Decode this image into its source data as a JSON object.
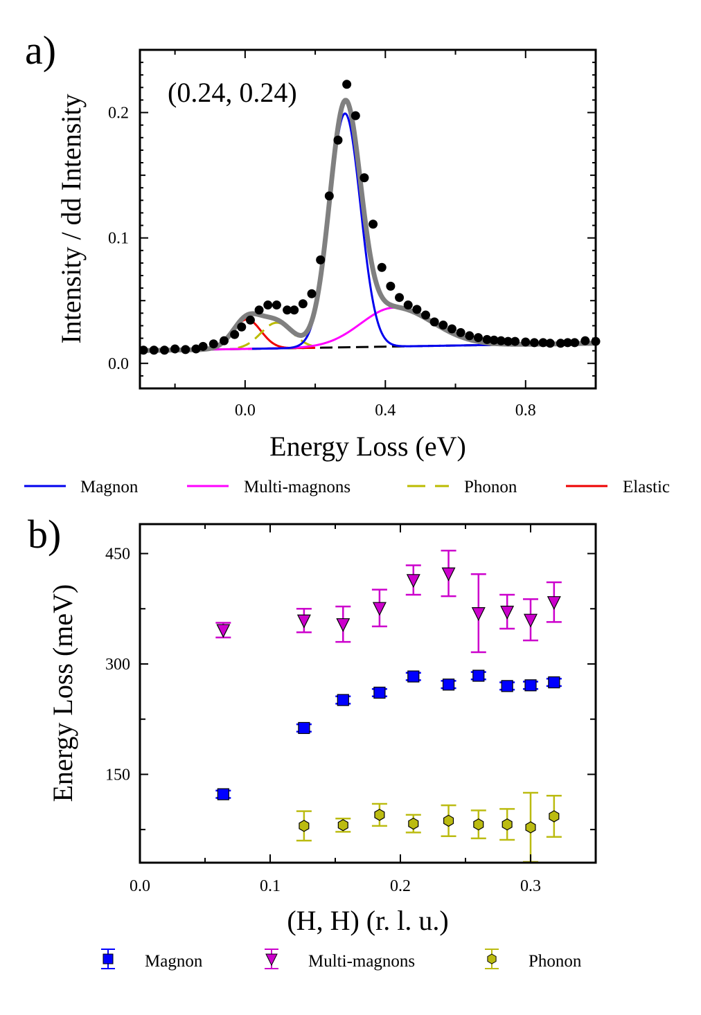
{
  "chart_data": [
    {
      "panel": "a)",
      "type": "line",
      "annotation": "(0.24, 0.24)",
      "xlabel": "Energy Loss (eV)",
      "ylabel": "Intensity / dd Intensity",
      "xlim": [
        -0.3,
        1.0
      ],
      "ylim": [
        -0.02,
        0.25
      ],
      "xticks": [
        {
          "value": 0.0,
          "label": "0.0"
        },
        {
          "value": 0.4,
          "label": "0.4"
        },
        {
          "value": 0.8,
          "label": "0.8"
        }
      ],
      "yticks": [
        {
          "value": 0.0,
          "label": "0.0"
        },
        {
          "value": 0.1,
          "label": "0.1"
        },
        {
          "value": 0.2,
          "label": "0.2"
        }
      ],
      "grid": false,
      "legend_position": "below",
      "legend": [
        {
          "name": "Magnon",
          "color": "#0000ee",
          "style": "solid"
        },
        {
          "name": "Multi-magnons",
          "color": "#ff00ff",
          "style": "solid"
        },
        {
          "name": "Phonon",
          "color": "#bbbb00",
          "style": "dashed"
        },
        {
          "name": "Elastic",
          "color": "#ee0000",
          "style": "solid"
        }
      ],
      "model": {
        "background": {
          "intercept": 0.0115,
          "slope": 0.0045,
          "color": "#000000"
        },
        "magnon": {
          "center": 0.285,
          "amplitude": 0.1865,
          "sigma": 0.044,
          "gamma": 0.01,
          "color": "#0000ee"
        },
        "multimagnon": {
          "center": 0.425,
          "amplitude": 0.031,
          "sigma_left": 0.095,
          "sigma_right": 0.11,
          "color": "#ff00ff"
        },
        "phonon": {
          "center": 0.09,
          "amplitude": 0.0205,
          "sigma": 0.045,
          "color": "#bbbb00"
        },
        "elastic": {
          "center": 0.005,
          "amplitude": 0.0235,
          "sigma": 0.04,
          "color": "#ee0000"
        },
        "total_color": "#808080"
      },
      "data_points": [
        {
          "x": -0.29,
          "y": 0.0105
        },
        {
          "x": -0.26,
          "y": 0.0105
        },
        {
          "x": -0.23,
          "y": 0.0105
        },
        {
          "x": -0.2,
          "y": 0.0115
        },
        {
          "x": -0.17,
          "y": 0.011
        },
        {
          "x": -0.14,
          "y": 0.0115
        },
        {
          "x": -0.12,
          "y": 0.0135
        },
        {
          "x": -0.09,
          "y": 0.0155
        },
        {
          "x": -0.06,
          "y": 0.018
        },
        {
          "x": -0.03,
          "y": 0.023
        },
        {
          "x": -0.01,
          "y": 0.029
        },
        {
          "x": 0.015,
          "y": 0.0345
        },
        {
          "x": 0.04,
          "y": 0.0425
        },
        {
          "x": 0.065,
          "y": 0.0465
        },
        {
          "x": 0.09,
          "y": 0.0465
        },
        {
          "x": 0.12,
          "y": 0.0425
        },
        {
          "x": 0.14,
          "y": 0.0425
        },
        {
          "x": 0.165,
          "y": 0.0475
        },
        {
          "x": 0.19,
          "y": 0.0555
        },
        {
          "x": 0.215,
          "y": 0.0825
        },
        {
          "x": 0.24,
          "y": 0.1335
        },
        {
          "x": 0.265,
          "y": 0.178
        },
        {
          "x": 0.29,
          "y": 0.2225
        },
        {
          "x": 0.315,
          "y": 0.1975
        },
        {
          "x": 0.34,
          "y": 0.148
        },
        {
          "x": 0.365,
          "y": 0.111
        },
        {
          "x": 0.39,
          "y": 0.0765
        },
        {
          "x": 0.415,
          "y": 0.0615
        },
        {
          "x": 0.44,
          "y": 0.0525
        },
        {
          "x": 0.465,
          "y": 0.0465
        },
        {
          "x": 0.49,
          "y": 0.043
        },
        {
          "x": 0.515,
          "y": 0.0385
        },
        {
          "x": 0.54,
          "y": 0.033
        },
        {
          "x": 0.565,
          "y": 0.0305
        },
        {
          "x": 0.59,
          "y": 0.0275
        },
        {
          "x": 0.615,
          "y": 0.0245
        },
        {
          "x": 0.64,
          "y": 0.022
        },
        {
          "x": 0.665,
          "y": 0.0205
        },
        {
          "x": 0.69,
          "y": 0.019
        },
        {
          "x": 0.71,
          "y": 0.0185
        },
        {
          "x": 0.73,
          "y": 0.018
        },
        {
          "x": 0.75,
          "y": 0.0175
        },
        {
          "x": 0.77,
          "y": 0.0175
        },
        {
          "x": 0.8,
          "y": 0.017
        },
        {
          "x": 0.825,
          "y": 0.0165
        },
        {
          "x": 0.85,
          "y": 0.0165
        },
        {
          "x": 0.87,
          "y": 0.016
        },
        {
          "x": 0.9,
          "y": 0.016
        },
        {
          "x": 0.92,
          "y": 0.0165
        },
        {
          "x": 0.94,
          "y": 0.0165
        },
        {
          "x": 0.97,
          "y": 0.018
        },
        {
          "x": 1.0,
          "y": 0.0175
        }
      ]
    },
    {
      "panel": "b)",
      "type": "scatter",
      "xlabel": "(H, H) (r. l. u.)",
      "ylabel": "Energy Loss (meV)",
      "xlim": [
        0.0,
        0.35
      ],
      "ylim": [
        30,
        490
      ],
      "xticks": [
        {
          "value": 0.0,
          "label": "0.0"
        },
        {
          "value": 0.1,
          "label": "0.1"
        },
        {
          "value": 0.2,
          "label": "0.2"
        },
        {
          "value": 0.3,
          "label": "0.3"
        }
      ],
      "yticks": [
        {
          "value": 150,
          "label": "150"
        },
        {
          "value": 300,
          "label": "300"
        },
        {
          "value": 450,
          "label": "450"
        }
      ],
      "grid": false,
      "legend_position": "below",
      "series": [
        {
          "name": "Magnon",
          "marker": "square",
          "color": "#0000ff",
          "points": [
            {
              "x": 0.064,
              "y": 123,
              "err": 5
            },
            {
              "x": 0.126,
              "y": 213,
              "err": 5
            },
            {
              "x": 0.156,
              "y": 251,
              "err": 5
            },
            {
              "x": 0.184,
              "y": 261,
              "err": 5
            },
            {
              "x": 0.21,
              "y": 283,
              "err": 5
            },
            {
              "x": 0.237,
              "y": 272,
              "err": 5
            },
            {
              "x": 0.26,
              "y": 284,
              "err": 5
            },
            {
              "x": 0.282,
              "y": 270,
              "err": 5
            },
            {
              "x": 0.3,
              "y": 271,
              "err": 5
            },
            {
              "x": 0.318,
              "y": 275,
              "err": 5
            }
          ]
        },
        {
          "name": "Multi-magnons",
          "marker": "triangle-down",
          "color": "#cc00cc",
          "points": [
            {
              "x": 0.064,
              "y": 346,
              "err": 10
            },
            {
              "x": 0.126,
              "y": 359,
              "err": 16
            },
            {
              "x": 0.156,
              "y": 354,
              "err": 24
            },
            {
              "x": 0.184,
              "y": 376,
              "err": 25
            },
            {
              "x": 0.21,
              "y": 414,
              "err": 20
            },
            {
              "x": 0.237,
              "y": 423,
              "err": 31
            },
            {
              "x": 0.26,
              "y": 369,
              "err": 53
            },
            {
              "x": 0.282,
              "y": 371,
              "err": 23
            },
            {
              "x": 0.3,
              "y": 360,
              "err": 28
            },
            {
              "x": 0.318,
              "y": 384,
              "err": 27
            }
          ]
        },
        {
          "name": "Phonon",
          "marker": "hexagon",
          "color": "#bbbb11",
          "points": [
            {
              "x": 0.126,
              "y": 80,
              "err": 20
            },
            {
              "x": 0.156,
              "y": 81,
              "err": 9
            },
            {
              "x": 0.184,
              "y": 95,
              "err": 15
            },
            {
              "x": 0.21,
              "y": 83,
              "err": 12
            },
            {
              "x": 0.237,
              "y": 87,
              "err": 21
            },
            {
              "x": 0.26,
              "y": 82,
              "err": 19
            },
            {
              "x": 0.282,
              "y": 82,
              "err": 21
            },
            {
              "x": 0.3,
              "y": 78,
              "err": 47
            },
            {
              "x": 0.318,
              "y": 93,
              "err": 28
            }
          ]
        }
      ]
    }
  ]
}
